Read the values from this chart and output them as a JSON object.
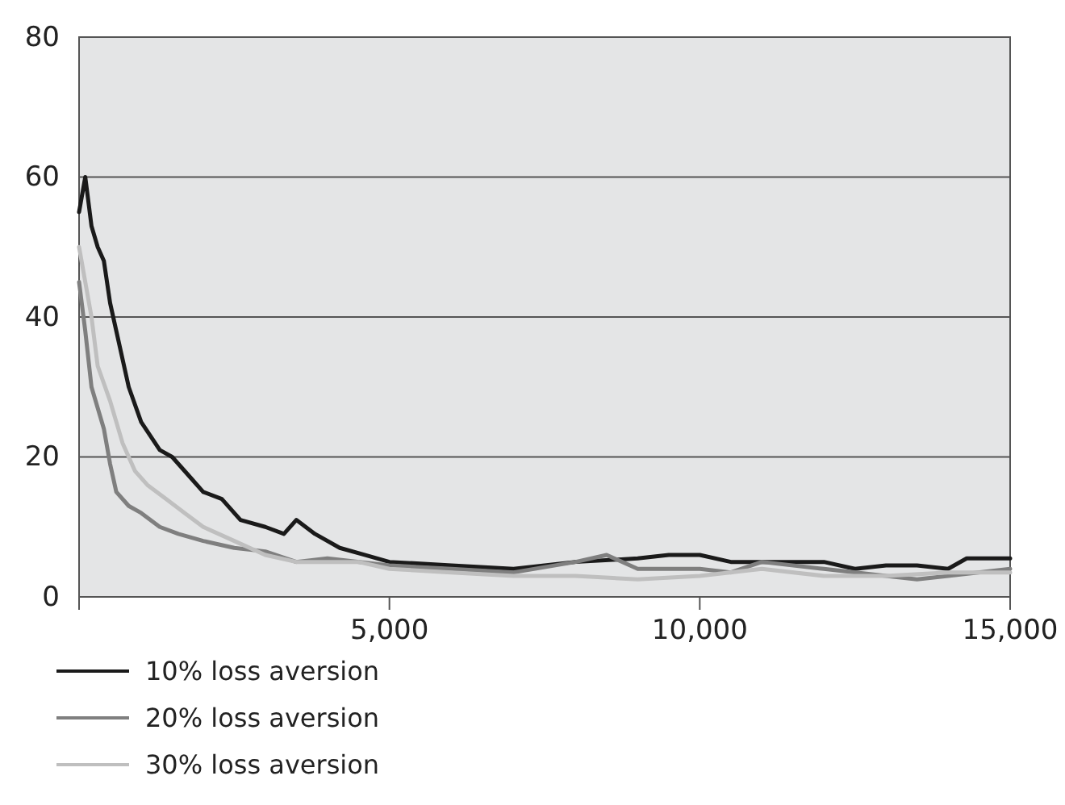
{
  "chart_data": {
    "type": "line",
    "xlim": [
      0,
      15000
    ],
    "ylim": [
      0,
      80
    ],
    "xticks": [
      {
        "value": 0,
        "label": null
      },
      {
        "value": 5000,
        "label": "5,000"
      },
      {
        "value": 10000,
        "label": "10,000"
      },
      {
        "value": 15000,
        "label": "15,000"
      }
    ],
    "yticks": [
      0,
      20,
      40,
      60,
      80
    ],
    "grid": "y",
    "legend": "bottom left",
    "line_style": "solid",
    "marker": "none",
    "series": [
      {
        "name": "10% loss aversion",
        "color": "#1a1a1a",
        "x": [
          0,
          100,
          200,
          300,
          400,
          500,
          600,
          800,
          1000,
          1300,
          1500,
          1800,
          2000,
          2300,
          2600,
          3000,
          3300,
          3500,
          3800,
          4200,
          4600,
          5000,
          6000,
          7000,
          8000,
          9000,
          9500,
          10000,
          10500,
          11000,
          12000,
          12500,
          13000,
          13500,
          14000,
          14300,
          15000
        ],
        "values": [
          55,
          60,
          53,
          50,
          48,
          42,
          38,
          30,
          25,
          21,
          20,
          17,
          15,
          14,
          11,
          10,
          9,
          11,
          9,
          7,
          6,
          5,
          4.5,
          4,
          5,
          5.5,
          6,
          6,
          5,
          5,
          5,
          4,
          4.5,
          4.5,
          4,
          5.5,
          5.5
        ]
      },
      {
        "name": "20% loss aversion",
        "color": "#7f7f7f",
        "x": [
          0,
          100,
          200,
          300,
          400,
          500,
          600,
          800,
          1000,
          1300,
          1600,
          2000,
          2500,
          3000,
          3500,
          4000,
          5000,
          6000,
          7000,
          8000,
          8500,
          9000,
          10000,
          10500,
          11000,
          12000,
          13000,
          13500,
          14000,
          15000
        ],
        "values": [
          45,
          38,
          30,
          27,
          24,
          19,
          15,
          13,
          12,
          10,
          9,
          8,
          7,
          6.5,
          5,
          5.5,
          4.5,
          4,
          3.5,
          5,
          6,
          4,
          4,
          3.5,
          5,
          4,
          3,
          2.5,
          3,
          4
        ]
      },
      {
        "name": "30% loss aversion",
        "color": "#bfbfbf",
        "x": [
          0,
          100,
          200,
          300,
          500,
          700,
          900,
          1100,
          1400,
          1700,
          2000,
          2500,
          3000,
          3500,
          4000,
          4500,
          5000,
          6000,
          7000,
          8000,
          9000,
          10000,
          11000,
          12000,
          13000,
          14000,
          15000
        ],
        "values": [
          50,
          45,
          40,
          33,
          28,
          22,
          18,
          16,
          14,
          12,
          10,
          8,
          6,
          5,
          5,
          5,
          4,
          3.5,
          3,
          3,
          2.5,
          3,
          4,
          3,
          3,
          3.5,
          3.5
        ]
      }
    ]
  }
}
